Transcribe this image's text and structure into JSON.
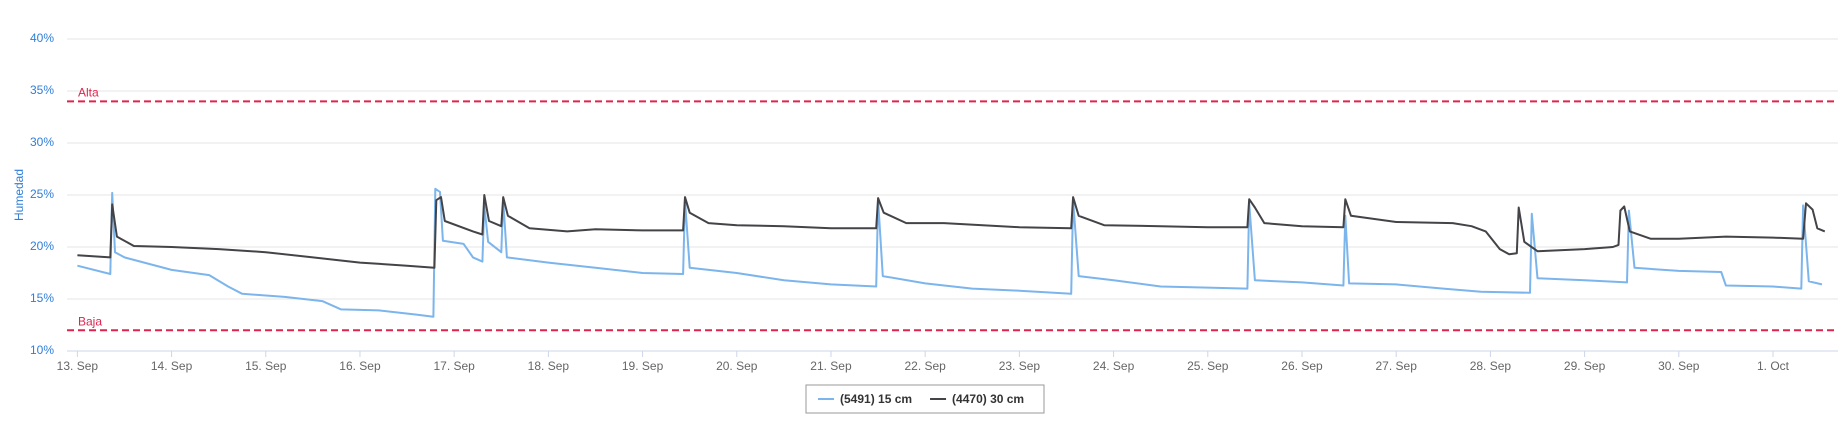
{
  "chart_data": {
    "type": "line",
    "y_label": "Humedad",
    "xlim": [
      -0.11,
      18.69
    ],
    "ylim": [
      10,
      40
    ],
    "yticks": [
      {
        "value": 10,
        "label": "10%"
      },
      {
        "value": 15,
        "label": "15%"
      },
      {
        "value": 20,
        "label": "20%"
      },
      {
        "value": 25,
        "label": "25%"
      },
      {
        "value": 30,
        "label": "30%"
      },
      {
        "value": 35,
        "label": "35%"
      },
      {
        "value": 40,
        "label": "40%"
      }
    ],
    "xticks": [
      {
        "value": 0,
        "label": "13. Sep"
      },
      {
        "value": 1,
        "label": "14. Sep"
      },
      {
        "value": 2,
        "label": "15. Sep"
      },
      {
        "value": 3,
        "label": "16. Sep"
      },
      {
        "value": 4,
        "label": "17. Sep"
      },
      {
        "value": 5,
        "label": "18. Sep"
      },
      {
        "value": 6,
        "label": "19. Sep"
      },
      {
        "value": 7,
        "label": "20. Sep"
      },
      {
        "value": 8,
        "label": "21. Sep"
      },
      {
        "value": 9,
        "label": "22. Sep"
      },
      {
        "value": 10,
        "label": "23. Sep"
      },
      {
        "value": 11,
        "label": "24. Sep"
      },
      {
        "value": 12,
        "label": "25. Sep"
      },
      {
        "value": 13,
        "label": "26. Sep"
      },
      {
        "value": 14,
        "label": "27. Sep"
      },
      {
        "value": 15,
        "label": "28. Sep"
      },
      {
        "value": 16,
        "label": "29. Sep"
      },
      {
        "value": 17,
        "label": "30. Sep"
      },
      {
        "value": 18,
        "label": "1. Oct"
      }
    ],
    "grid": true,
    "plot_lines": [
      {
        "value": 34,
        "label": "Alta",
        "color": "#e0234e"
      },
      {
        "value": 12,
        "label": "Baja",
        "color": "#e0234e"
      }
    ],
    "series": [
      {
        "name": "(5491) 15 cm",
        "color": "#7cb5ec",
        "x": [
          0,
          0.35,
          0.37,
          0.4,
          0.5,
          1.0,
          1.4,
          1.6,
          1.75,
          2.2,
          2.6,
          2.8,
          3.2,
          3.6,
          3.78,
          3.8,
          3.85,
          3.88,
          4.1,
          4.2,
          4.3,
          4.32,
          4.36,
          4.5,
          4.52,
          4.56,
          5.0,
          5.5,
          6.0,
          6.43,
          6.45,
          6.5,
          7.0,
          7.5,
          8.0,
          8.48,
          8.5,
          8.55,
          9.0,
          9.5,
          10.0,
          10.55,
          10.57,
          10.63,
          11.0,
          11.5,
          12.0,
          12.42,
          12.44,
          12.5,
          13.0,
          13.44,
          13.46,
          13.5,
          14.0,
          14.5,
          14.9,
          15.42,
          15.44,
          15.5,
          16.0,
          16.45,
          16.47,
          16.53,
          17.0,
          17.45,
          17.5,
          18.0,
          18.3,
          18.32,
          18.38,
          18.52
        ],
        "values": [
          18.2,
          17.4,
          25.2,
          19.5,
          19.0,
          17.8,
          17.3,
          16.2,
          15.5,
          15.2,
          14.8,
          14.0,
          13.9,
          13.5,
          13.3,
          25.6,
          25.3,
          20.6,
          20.3,
          19.0,
          18.6,
          24.0,
          20.5,
          19.5,
          24.5,
          19.0,
          18.5,
          18.0,
          17.5,
          17.4,
          24.5,
          18.0,
          17.5,
          16.8,
          16.4,
          16.2,
          24.5,
          17.2,
          16.5,
          16.0,
          15.8,
          15.5,
          24.5,
          17.2,
          16.8,
          16.2,
          16.1,
          16.0,
          24.2,
          16.8,
          16.6,
          16.3,
          23.0,
          16.5,
          16.4,
          16.0,
          15.7,
          15.6,
          23.2,
          17.0,
          16.8,
          16.6,
          23.5,
          18.0,
          17.7,
          17.6,
          16.3,
          16.2,
          16.0,
          24.0,
          16.7,
          16.4
        ]
      },
      {
        "name": "(4470) 30 cm",
        "color": "#434348",
        "x": [
          0,
          0.35,
          0.37,
          0.42,
          0.6,
          1.0,
          1.5,
          2.0,
          2.5,
          3.0,
          3.5,
          3.79,
          3.81,
          3.86,
          3.9,
          4.2,
          4.3,
          4.32,
          4.37,
          4.5,
          4.52,
          4.57,
          4.8,
          5.2,
          5.5,
          6.0,
          6.43,
          6.45,
          6.5,
          6.7,
          7.0,
          7.5,
          8.0,
          8.48,
          8.5,
          8.56,
          8.8,
          9.2,
          10.0,
          10.55,
          10.57,
          10.63,
          10.9,
          11.5,
          12.0,
          12.42,
          12.44,
          12.5,
          12.6,
          13.0,
          13.44,
          13.46,
          13.52,
          14.0,
          14.6,
          14.8,
          14.95,
          15.1,
          15.2,
          15.28,
          15.3,
          15.36,
          15.5,
          16.0,
          16.3,
          16.36,
          16.38,
          16.42,
          16.48,
          16.7,
          17.0,
          17.5,
          18.0,
          18.32,
          18.35,
          18.42,
          18.47,
          18.55
        ],
        "values": [
          19.2,
          19.0,
          24.1,
          21.0,
          20.1,
          20.0,
          19.8,
          19.5,
          19.0,
          18.5,
          18.2,
          18.0,
          24.5,
          24.8,
          22.5,
          21.5,
          21.2,
          25.0,
          22.5,
          22.0,
          24.8,
          23.0,
          21.8,
          21.5,
          21.7,
          21.6,
          21.6,
          24.8,
          23.3,
          22.3,
          22.1,
          22.0,
          21.8,
          21.8,
          24.7,
          23.3,
          22.3,
          22.3,
          21.9,
          21.8,
          24.8,
          23.0,
          22.1,
          22.0,
          21.9,
          21.9,
          24.6,
          23.8,
          22.3,
          22.0,
          21.9,
          24.6,
          23.0,
          22.4,
          22.3,
          22.0,
          21.5,
          19.8,
          19.3,
          19.4,
          23.8,
          20.5,
          19.6,
          19.8,
          20.0,
          20.2,
          23.5,
          23.9,
          21.5,
          20.8,
          20.8,
          21.0,
          20.9,
          20.8,
          24.2,
          23.6,
          21.8,
          21.5
        ]
      }
    ]
  }
}
